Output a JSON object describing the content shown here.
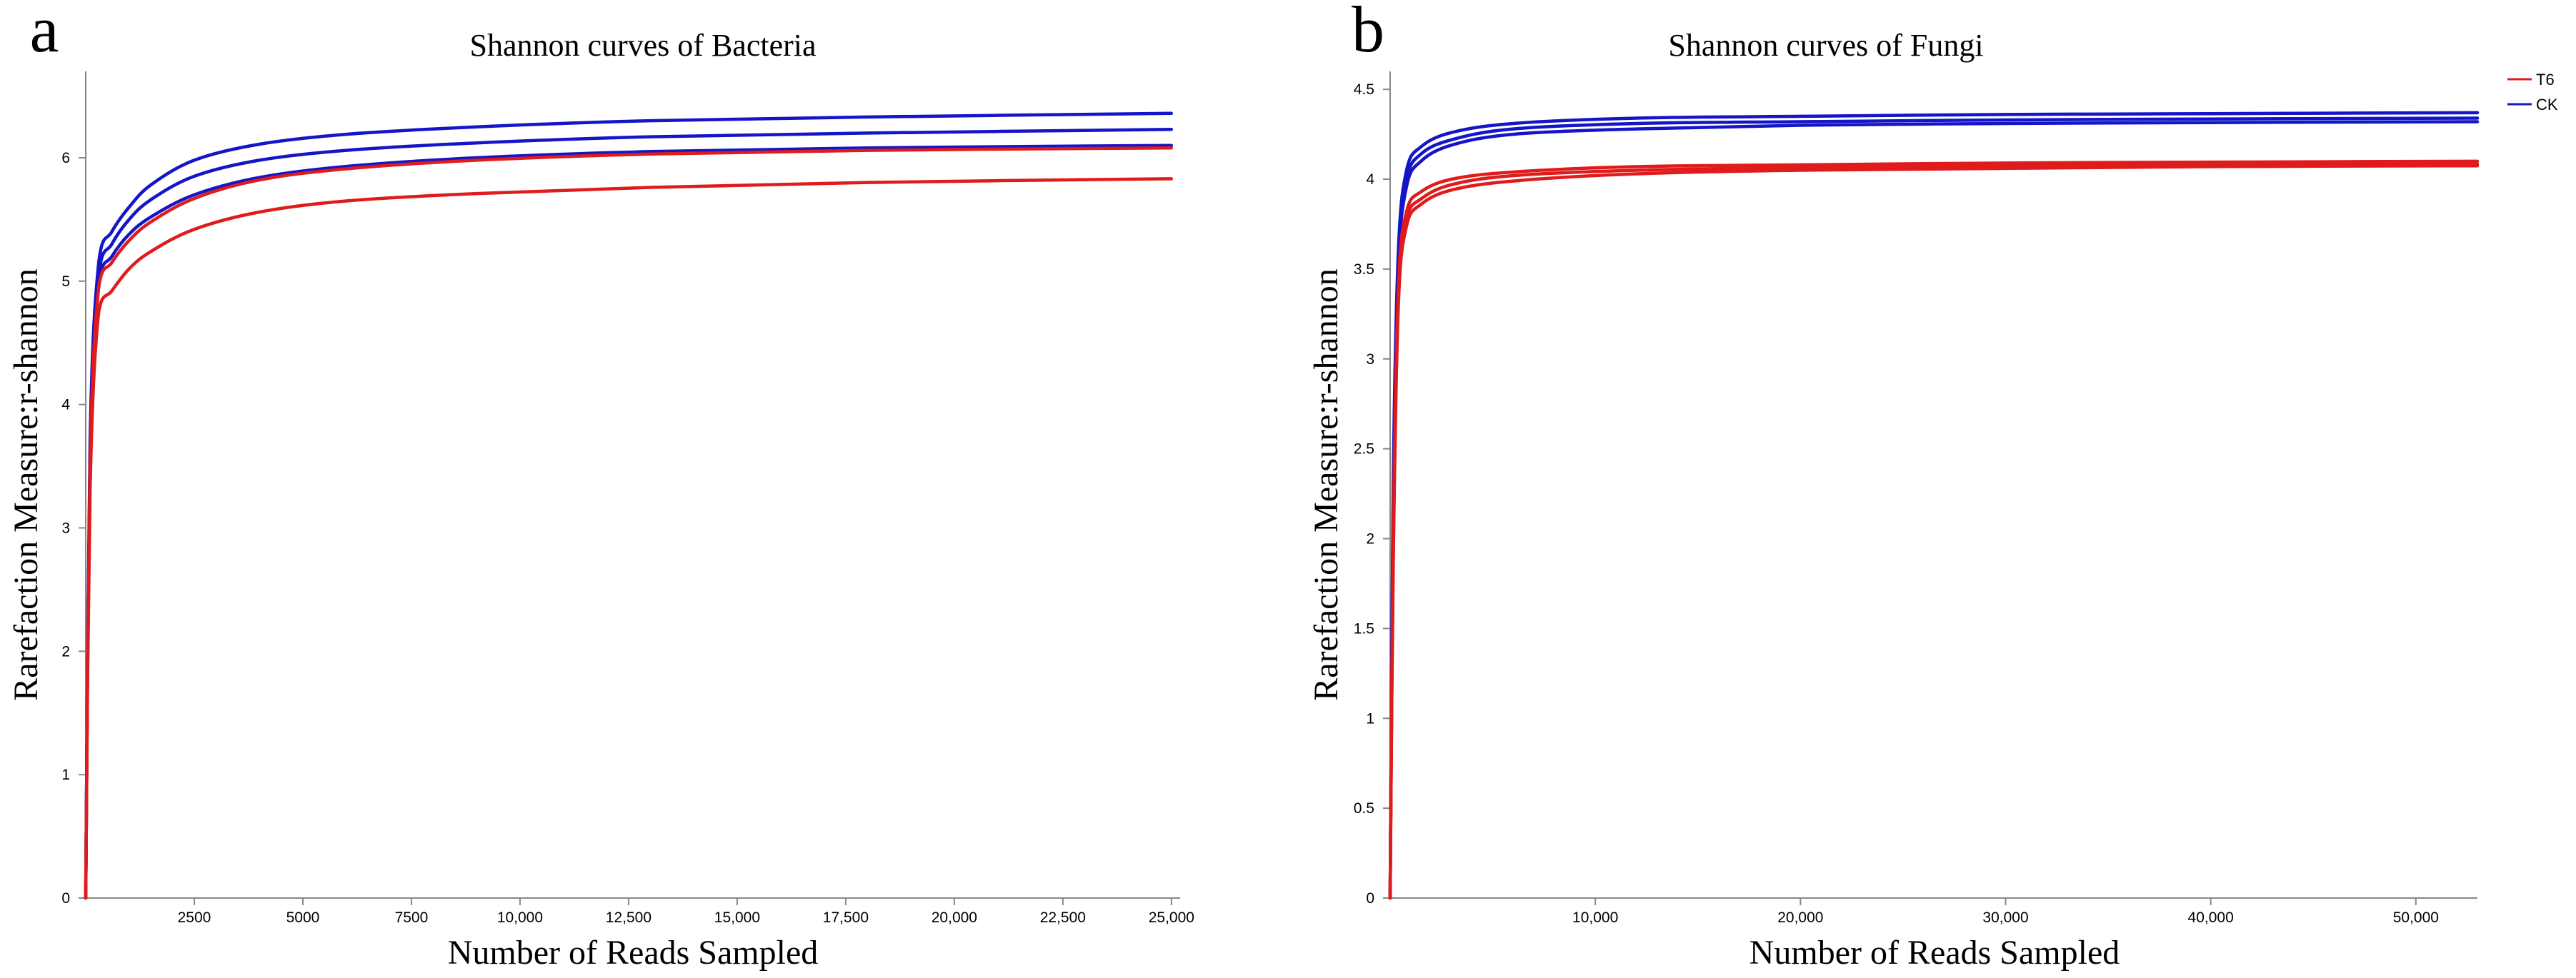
{
  "chart_data": [
    {
      "type": "line",
      "panel_label": "a",
      "title": "Shannon curves of Bacteria",
      "xlabel": "Number of Reads Sampled",
      "ylabel": "Rarefaction Measure:r-shannon",
      "xlim": [
        0,
        25200
      ],
      "ylim": [
        0,
        6.7
      ],
      "xticks": [
        2500,
        5000,
        7500,
        10000,
        12500,
        15000,
        17500,
        20000,
        22500,
        25000
      ],
      "xtick_labels": [
        "2500",
        "5000",
        "7500",
        "10,000",
        "12,500",
        "15,000",
        "17,500",
        "20,000",
        "22,500",
        "25,000"
      ],
      "yticks": [
        0,
        1,
        2,
        3,
        4,
        5,
        6
      ],
      "ytick_labels": [
        "0",
        "1",
        "2",
        "3",
        "4",
        "5",
        "6"
      ],
      "grid": false,
      "series": [
        {
          "name": "CK",
          "color": "#1515c8",
          "x": [
            0,
            100,
            300,
            600,
            1000,
            1500,
            2500,
            4000,
            6000,
            9000,
            13000,
            18000,
            25000
          ],
          "y": [
            0,
            3.7,
            5.15,
            5.4,
            5.6,
            5.78,
            5.98,
            6.11,
            6.19,
            6.25,
            6.3,
            6.33,
            6.36
          ]
        },
        {
          "name": "CK",
          "color": "#1515c8",
          "x": [
            0,
            100,
            300,
            600,
            1000,
            1500,
            2500,
            4000,
            6000,
            9000,
            13000,
            18000,
            25000
          ],
          "y": [
            0,
            3.6,
            5.05,
            5.3,
            5.5,
            5.66,
            5.85,
            5.98,
            6.06,
            6.12,
            6.17,
            6.2,
            6.23
          ]
        },
        {
          "name": "CK",
          "color": "#1515c8",
          "x": [
            0,
            100,
            300,
            600,
            1000,
            1500,
            2500,
            4000,
            6000,
            9000,
            13000,
            18000,
            25000
          ],
          "y": [
            0,
            3.5,
            4.98,
            5.2,
            5.38,
            5.52,
            5.7,
            5.84,
            5.93,
            6.0,
            6.05,
            6.08,
            6.1
          ]
        },
        {
          "name": "T6",
          "color": "#e01b1b",
          "x": [
            0,
            100,
            300,
            600,
            1000,
            1500,
            2500,
            4000,
            6000,
            9000,
            13000,
            18000,
            25000
          ],
          "y": [
            0,
            3.5,
            4.95,
            5.15,
            5.33,
            5.48,
            5.67,
            5.82,
            5.91,
            5.98,
            6.03,
            6.06,
            6.08
          ]
        },
        {
          "name": "T6",
          "color": "#e01b1b",
          "x": [
            0,
            100,
            300,
            600,
            1000,
            1500,
            2500,
            4000,
            6000,
            9000,
            13000,
            18000,
            25000
          ],
          "y": [
            0,
            3.3,
            4.75,
            4.92,
            5.1,
            5.24,
            5.42,
            5.56,
            5.65,
            5.71,
            5.76,
            5.8,
            5.83
          ]
        }
      ]
    },
    {
      "type": "line",
      "panel_label": "b",
      "title": "Shannon curves of Fungi",
      "xlabel": "Number of Reads Sampled",
      "ylabel": "Rarefaction Measure:r-shannon",
      "xlim": [
        0,
        53000
      ],
      "ylim": [
        0,
        4.6
      ],
      "xticks": [
        10000,
        20000,
        30000,
        40000,
        50000
      ],
      "xtick_labels": [
        "10,000",
        "20,000",
        "30,000",
        "40,000",
        "50,000"
      ],
      "yticks": [
        0,
        0.5,
        1,
        1.5,
        2,
        2.5,
        3,
        3.5,
        4,
        4.5
      ],
      "ytick_labels": [
        "0",
        "0.5",
        "1",
        "1.5",
        "2",
        "2.5",
        "3",
        "3.5",
        "4",
        "4.5"
      ],
      "grid": false,
      "legend_position": "top-right",
      "legend": [
        {
          "name": "T6",
          "color": "#e01b1b"
        },
        {
          "name": "CK",
          "color": "#1515c8"
        }
      ],
      "series": [
        {
          "name": "CK",
          "color": "#1515c8",
          "x": [
            0,
            150,
            400,
            800,
            1500,
            3000,
            6000,
            12000,
            20000,
            30000,
            40000,
            53000
          ],
          "y": [
            0,
            2.3,
            3.6,
            4.05,
            4.18,
            4.26,
            4.31,
            4.34,
            4.35,
            4.36,
            4.365,
            4.37
          ]
        },
        {
          "name": "CK",
          "color": "#1515c8",
          "x": [
            0,
            150,
            400,
            800,
            1500,
            3000,
            6000,
            12000,
            20000,
            30000,
            40000,
            53000
          ],
          "y": [
            0,
            2.2,
            3.55,
            4.0,
            4.14,
            4.22,
            4.28,
            4.31,
            4.32,
            4.33,
            4.335,
            4.34
          ]
        },
        {
          "name": "CK",
          "color": "#1515c8",
          "x": [
            0,
            150,
            400,
            800,
            1500,
            3000,
            6000,
            12000,
            20000,
            30000,
            40000,
            53000
          ],
          "y": [
            0,
            2.1,
            3.5,
            3.96,
            4.1,
            4.19,
            4.25,
            4.28,
            4.3,
            4.31,
            4.315,
            4.32
          ]
        },
        {
          "name": "T6",
          "color": "#e01b1b",
          "x": [
            0,
            150,
            400,
            800,
            1500,
            3000,
            6000,
            12000,
            20000,
            30000,
            40000,
            53000
          ],
          "y": [
            0,
            2.0,
            3.4,
            3.82,
            3.93,
            4.0,
            4.04,
            4.07,
            4.08,
            4.09,
            4.095,
            4.1
          ]
        },
        {
          "name": "T6",
          "color": "#e01b1b",
          "x": [
            0,
            150,
            400,
            800,
            1500,
            3000,
            6000,
            12000,
            20000,
            30000,
            40000,
            53000
          ],
          "y": [
            0,
            1.9,
            3.35,
            3.78,
            3.89,
            3.97,
            4.02,
            4.05,
            4.065,
            4.075,
            4.08,
            4.085
          ]
        },
        {
          "name": "T6",
          "color": "#e01b1b",
          "x": [
            0,
            150,
            400,
            800,
            1500,
            3000,
            6000,
            12000,
            20000,
            30000,
            40000,
            53000
          ],
          "y": [
            0,
            1.85,
            3.3,
            3.74,
            3.86,
            3.94,
            3.99,
            4.03,
            4.05,
            4.06,
            4.07,
            4.075
          ]
        }
      ]
    }
  ]
}
